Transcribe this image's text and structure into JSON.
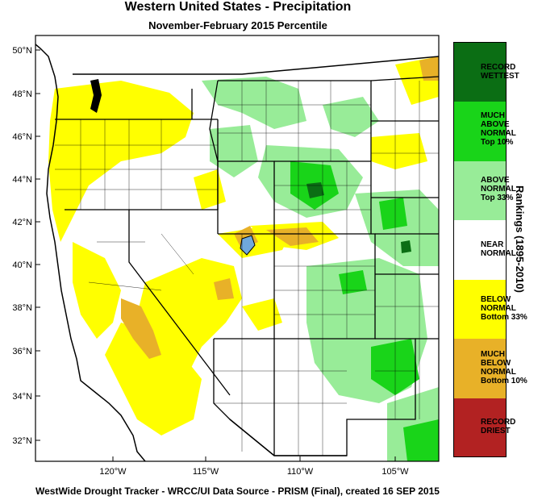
{
  "title": "Western United States - Precipitation",
  "subtitle": "November-February 2015 Percentile",
  "footer": "WestWide Drought Tracker - WRCC/UI  Data Source - PRISM (Final), created 16 SEP 2015",
  "legend_title": "Rankings (1895-2010)",
  "latitude_labels": [
    "50°N",
    "48°N",
    "46°N",
    "44°N",
    "42°N",
    "40°N",
    "38°N",
    "36°N",
    "34°N",
    "32°N"
  ],
  "longitude_labels": [
    "120°W",
    "115°W",
    "110°W",
    "105°W"
  ],
  "legend": [
    {
      "label": [
        "RECORD",
        "WETTEST"
      ],
      "color": "#0b6e14"
    },
    {
      "label": [
        "MUCH",
        "ABOVE",
        "NORMAL",
        "Top 10%"
      ],
      "color": "#19d419"
    },
    {
      "label": [
        "ABOVE",
        "NORMAL",
        "Top 33%"
      ],
      "color": "#98ec98"
    },
    {
      "label": [
        "NEAR",
        "NORMAL"
      ],
      "color": "#ffffff"
    },
    {
      "label": [
        "BELOW",
        "NORMAL",
        "Bottom 33%"
      ],
      "color": "#ffff00"
    },
    {
      "label": [
        "MUCH",
        "BELOW",
        "NORMAL",
        "Bottom 10%"
      ],
      "color": "#e8b128"
    },
    {
      "label": [
        "RECORD",
        "DRIEST"
      ],
      "color": "#b22222"
    }
  ],
  "map_colors": {
    "near_normal": "#ffffff",
    "above_normal": "#98ec98",
    "much_above": "#19d419",
    "record_wettest": "#0b6e14",
    "below_normal": "#ffff00",
    "much_below": "#e8b128",
    "ocean": "#ffffff"
  }
}
